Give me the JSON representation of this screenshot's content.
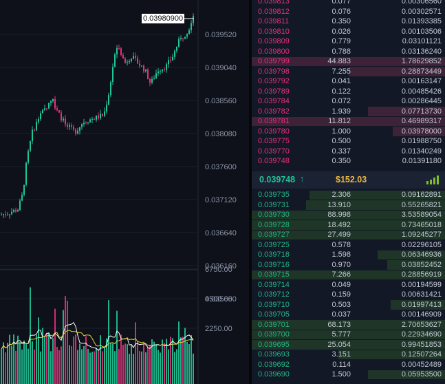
{
  "colors": {
    "up": "#22c597",
    "down": "#e8317d",
    "ask_price": "#e8317d",
    "bid_price": "#22b583",
    "usd": "#f0b83e",
    "ma_white": "#ffffff",
    "ma_yellow": "#e3d43a"
  },
  "chart": {
    "current_price_label": "0.03980900",
    "price_axis_labels": [
      "0.039520",
      "0.039040",
      "0.038560",
      "0.038080",
      "0.037600",
      "0.037120",
      "0.036640",
      "0.036160",
      "0.035680"
    ],
    "volume_axis_labels": [
      "6750.00",
      "4500.00",
      "2250.00"
    ]
  },
  "chart_data": {
    "type": "candlestick",
    "price_axis": [
      0.03952,
      0.03904,
      0.03856,
      0.03808,
      0.0376,
      0.03712,
      0.03664,
      0.03616,
      0.03568
    ],
    "volume_axis": [
      6750,
      4500,
      2250
    ],
    "last_price": 0.039809,
    "approx_close_path": [
      [
        0,
        0.0369
      ],
      [
        10,
        0.03692
      ],
      [
        25,
        0.03698
      ],
      [
        32,
        0.0372
      ],
      [
        38,
        0.0377
      ],
      [
        46,
        0.0381
      ],
      [
        55,
        0.0383
      ],
      [
        65,
        0.03845
      ],
      [
        75,
        0.0386
      ],
      [
        82,
        0.0384
      ],
      [
        95,
        0.0382
      ],
      [
        108,
        0.0381
      ],
      [
        120,
        0.03825
      ],
      [
        135,
        0.0383
      ],
      [
        150,
        0.03835
      ],
      [
        158,
        0.0387
      ],
      [
        165,
        0.0392
      ],
      [
        172,
        0.03935
      ],
      [
        180,
        0.0391
      ],
      [
        190,
        0.0392
      ],
      [
        200,
        0.0391
      ],
      [
        210,
        0.039
      ],
      [
        218,
        0.0388
      ],
      [
        228,
        0.039
      ],
      [
        240,
        0.03905
      ],
      [
        250,
        0.0392
      ],
      [
        258,
        0.0394
      ],
      [
        266,
        0.0395
      ],
      [
        274,
        0.0396
      ],
      [
        282,
        0.03981
      ]
    ]
  },
  "asks": [
    {
      "price": "0.039813",
      "amount": "0.077",
      "total": "0.00306560",
      "depth": 0.0
    },
    {
      "price": "0.039812",
      "amount": "0.076",
      "total": "0.00302571",
      "depth": 0.0
    },
    {
      "price": "0.039811",
      "amount": "0.350",
      "total": "0.01393385",
      "depth": 0.0
    },
    {
      "price": "0.039810",
      "amount": "0.026",
      "total": "0.00103506",
      "depth": 0.0
    },
    {
      "price": "0.039809",
      "amount": "0.779",
      "total": "0.03101121",
      "depth": 0.0
    },
    {
      "price": "0.039800",
      "amount": "0.788",
      "total": "0.03136240",
      "depth": 0.0
    },
    {
      "price": "0.039799",
      "amount": "44.883",
      "total": "1.78629852",
      "depth": 1.0
    },
    {
      "price": "0.039798",
      "amount": "7.255",
      "total": "0.28873449",
      "depth": 0.5
    },
    {
      "price": "0.039792",
      "amount": "0.041",
      "total": "0.00163147",
      "depth": 0.0
    },
    {
      "price": "0.039789",
      "amount": "0.122",
      "total": "0.00485426",
      "depth": 0.0
    },
    {
      "price": "0.039784",
      "amount": "0.072",
      "total": "0.00286445",
      "depth": 0.0
    },
    {
      "price": "0.039782",
      "amount": "1.939",
      "total": "0.07713730",
      "depth": 0.4
    },
    {
      "price": "0.039781",
      "amount": "11.812",
      "total": "0.46989317",
      "depth": 1.0
    },
    {
      "price": "0.039780",
      "amount": "1.000",
      "total": "0.03978000",
      "depth": 0.27
    },
    {
      "price": "0.039775",
      "amount": "0.500",
      "total": "0.01988750",
      "depth": 0.0
    },
    {
      "price": "0.039770",
      "amount": "0.337",
      "total": "0.01340249",
      "depth": 0.0
    },
    {
      "price": "0.039748",
      "amount": "0.350",
      "total": "0.01391180",
      "depth": 0.0
    }
  ],
  "ticker": {
    "price": "0.039748",
    "arrow": "↑",
    "usd": "$152.03",
    "icon": "signal-bars-icon"
  },
  "bids": [
    {
      "price": "0.039735",
      "amount": "2.306",
      "total": "0.09162891",
      "depth": 0.7
    },
    {
      "price": "0.039731",
      "amount": "13.910",
      "total": "0.55265821",
      "depth": 0.72
    },
    {
      "price": "0.039730",
      "amount": "88.998",
      "total": "3.53589054",
      "depth": 1.0
    },
    {
      "price": "0.039728",
      "amount": "18.492",
      "total": "0.73465018",
      "depth": 1.0
    },
    {
      "price": "0.039727",
      "amount": "27.499",
      "total": "1.09245277",
      "depth": 1.0
    },
    {
      "price": "0.039725",
      "amount": "0.578",
      "total": "0.02296105",
      "depth": 0.0
    },
    {
      "price": "0.039718",
      "amount": "1.598",
      "total": "0.06346936",
      "depth": 0.35
    },
    {
      "price": "0.039716",
      "amount": "0.970",
      "total": "0.03852452",
      "depth": 0.3
    },
    {
      "price": "0.039715",
      "amount": "7.266",
      "total": "0.28856919",
      "depth": 1.0
    },
    {
      "price": "0.039714",
      "amount": "0.049",
      "total": "0.00194599",
      "depth": 0.0
    },
    {
      "price": "0.039712",
      "amount": "0.159",
      "total": "0.00631421",
      "depth": 0.0
    },
    {
      "price": "0.039710",
      "amount": "0.503",
      "total": "0.01997413",
      "depth": 0.28
    },
    {
      "price": "0.039705",
      "amount": "0.037",
      "total": "0.00146909",
      "depth": 0.0
    },
    {
      "price": "0.039701",
      "amount": "68.173",
      "total": "2.70653627",
      "depth": 1.0
    },
    {
      "price": "0.039700",
      "amount": "5.777",
      "total": "0.22934690",
      "depth": 1.0
    },
    {
      "price": "0.039695",
      "amount": "25.054",
      "total": "0.99451853",
      "depth": 1.0
    },
    {
      "price": "0.039693",
      "amount": "3.151",
      "total": "0.12507264",
      "depth": 0.55
    },
    {
      "price": "0.039692",
      "amount": "0.114",
      "total": "0.00452489",
      "depth": 0.0
    },
    {
      "price": "0.039690",
      "amount": "1.500",
      "total": "0.05953500",
      "depth": 0.4
    }
  ]
}
